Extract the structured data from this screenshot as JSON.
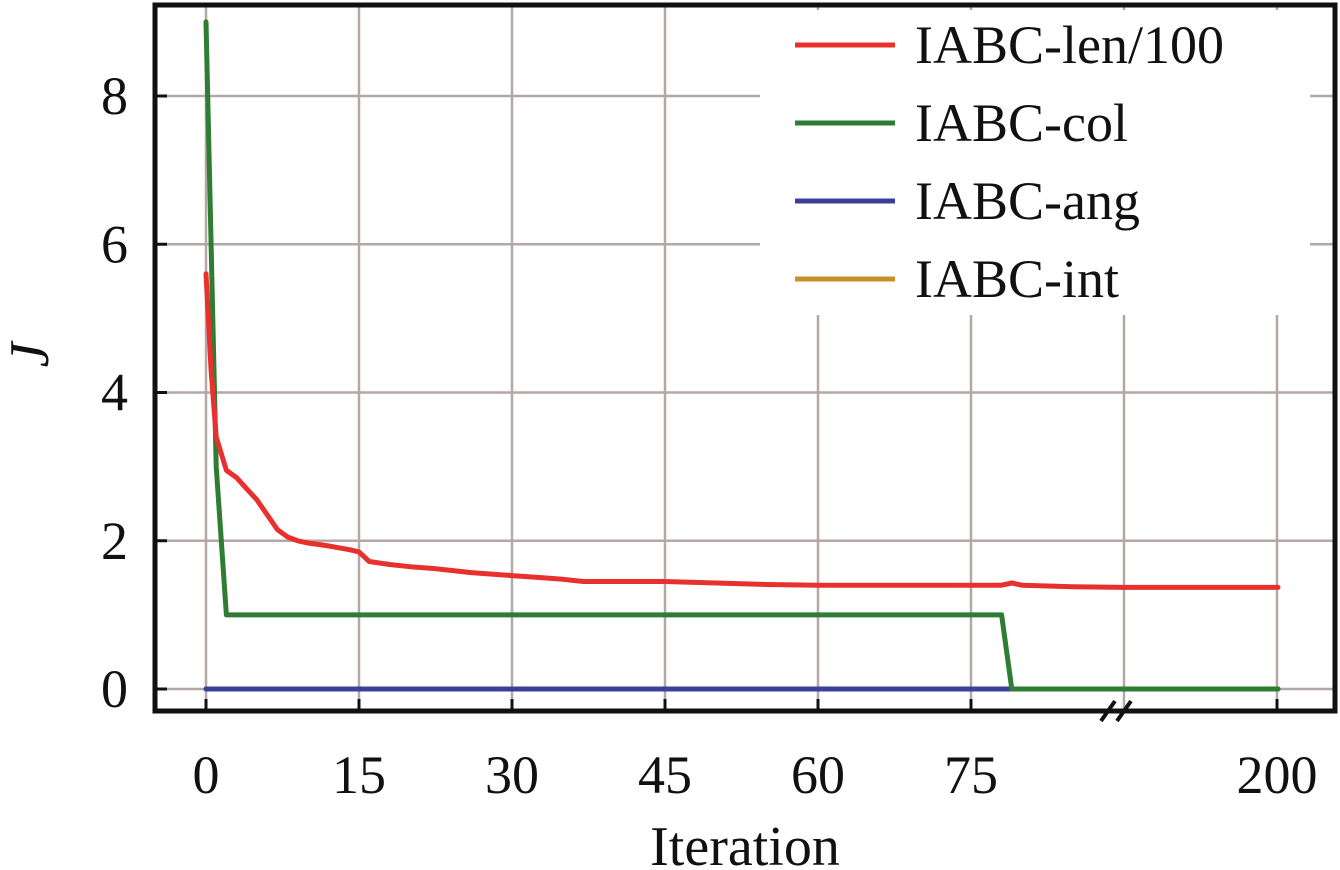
{
  "chart_data": {
    "type": "line",
    "xlabel": "Iteration",
    "ylabel": "J",
    "x_ticks": [
      "0",
      "15",
      "30",
      "45",
      "60",
      "75",
      "200"
    ],
    "x_tick_values": [
      0,
      15,
      30,
      45,
      60,
      75,
      200
    ],
    "y_ticks": [
      "0",
      "2",
      "4",
      "6",
      "8"
    ],
    "y_tick_values": [
      0,
      2,
      4,
      6,
      8
    ],
    "ylim": [
      -0.3,
      9.2
    ],
    "axis_break_after": 90,
    "grid": true,
    "legend_position": "top-right",
    "series": [
      {
        "name": "IABC-len/100",
        "color": "#e8302f",
        "points": [
          [
            0,
            5.6
          ],
          [
            0.5,
            4.3
          ],
          [
            1,
            3.4
          ],
          [
            2,
            2.95
          ],
          [
            3,
            2.85
          ],
          [
            4,
            2.7
          ],
          [
            5,
            2.55
          ],
          [
            6,
            2.35
          ],
          [
            7,
            2.15
          ],
          [
            8,
            2.05
          ],
          [
            9,
            2.0
          ],
          [
            10,
            1.97
          ],
          [
            12,
            1.93
          ],
          [
            14,
            1.88
          ],
          [
            15,
            1.85
          ],
          [
            16,
            1.72
          ],
          [
            18,
            1.68
          ],
          [
            20,
            1.65
          ],
          [
            22,
            1.63
          ],
          [
            24,
            1.6
          ],
          [
            26,
            1.57
          ],
          [
            28,
            1.55
          ],
          [
            30,
            1.53
          ],
          [
            33,
            1.5
          ],
          [
            35,
            1.48
          ],
          [
            37,
            1.45
          ],
          [
            40,
            1.45
          ],
          [
            45,
            1.45
          ],
          [
            50,
            1.43
          ],
          [
            55,
            1.41
          ],
          [
            60,
            1.4
          ],
          [
            65,
            1.4
          ],
          [
            70,
            1.4
          ],
          [
            78,
            1.4
          ],
          [
            79,
            1.43
          ],
          [
            80,
            1.4
          ],
          [
            85,
            1.38
          ],
          [
            90,
            1.37
          ],
          [
            100,
            1.37
          ],
          [
            150,
            1.37
          ],
          [
            201,
            1.37
          ]
        ]
      },
      {
        "name": "IABC-col",
        "color": "#2e7d32",
        "points": [
          [
            0,
            9.0
          ],
          [
            1,
            3.0
          ],
          [
            2,
            1.0
          ],
          [
            10,
            1.0
          ],
          [
            40,
            1.0
          ],
          [
            77,
            1.0
          ],
          [
            78,
            1.0
          ],
          [
            79,
            0.0
          ],
          [
            90,
            0.0
          ],
          [
            201,
            0.0
          ]
        ]
      },
      {
        "name": "IABC-ang",
        "color": "#3b3f99",
        "points": [
          [
            0,
            0.0
          ],
          [
            90,
            0.0
          ],
          [
            201,
            0.0
          ]
        ]
      },
      {
        "name": "IABC-int",
        "color": "#c8902a",
        "points": [
          [
            0,
            0.0
          ],
          [
            90,
            0.0
          ],
          [
            201,
            0.0
          ]
        ]
      }
    ]
  }
}
